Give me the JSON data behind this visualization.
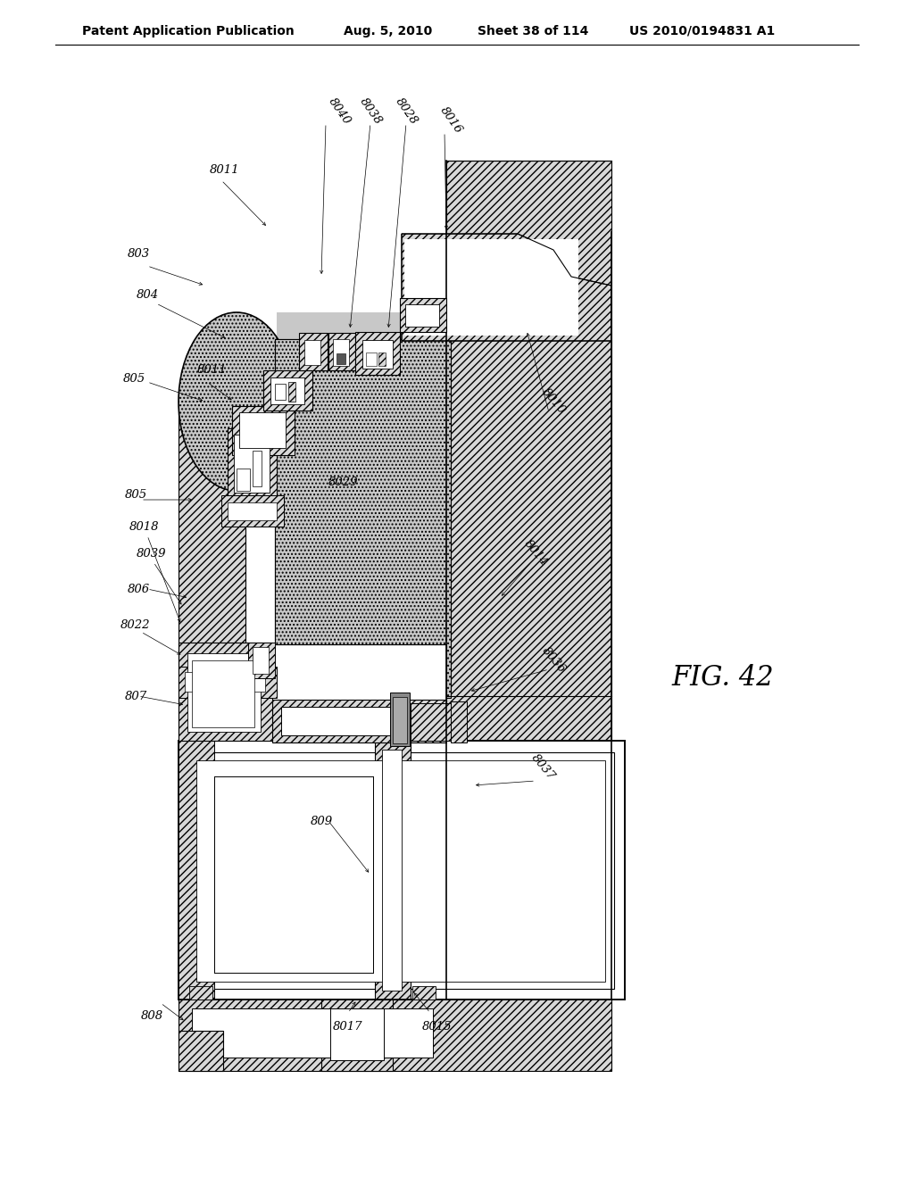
{
  "background": "#ffffff",
  "header_title": "Patent Application Publication",
  "header_date": "Aug. 5, 2010",
  "header_sheet": "Sheet 38 of 114",
  "header_patent": "US 2010/0194831 A1",
  "fig_label": "FIG. 42",
  "hatch_gray": "#d8d8d8",
  "stipple_gray": "#c8c8c8",
  "line_color": "#000000"
}
